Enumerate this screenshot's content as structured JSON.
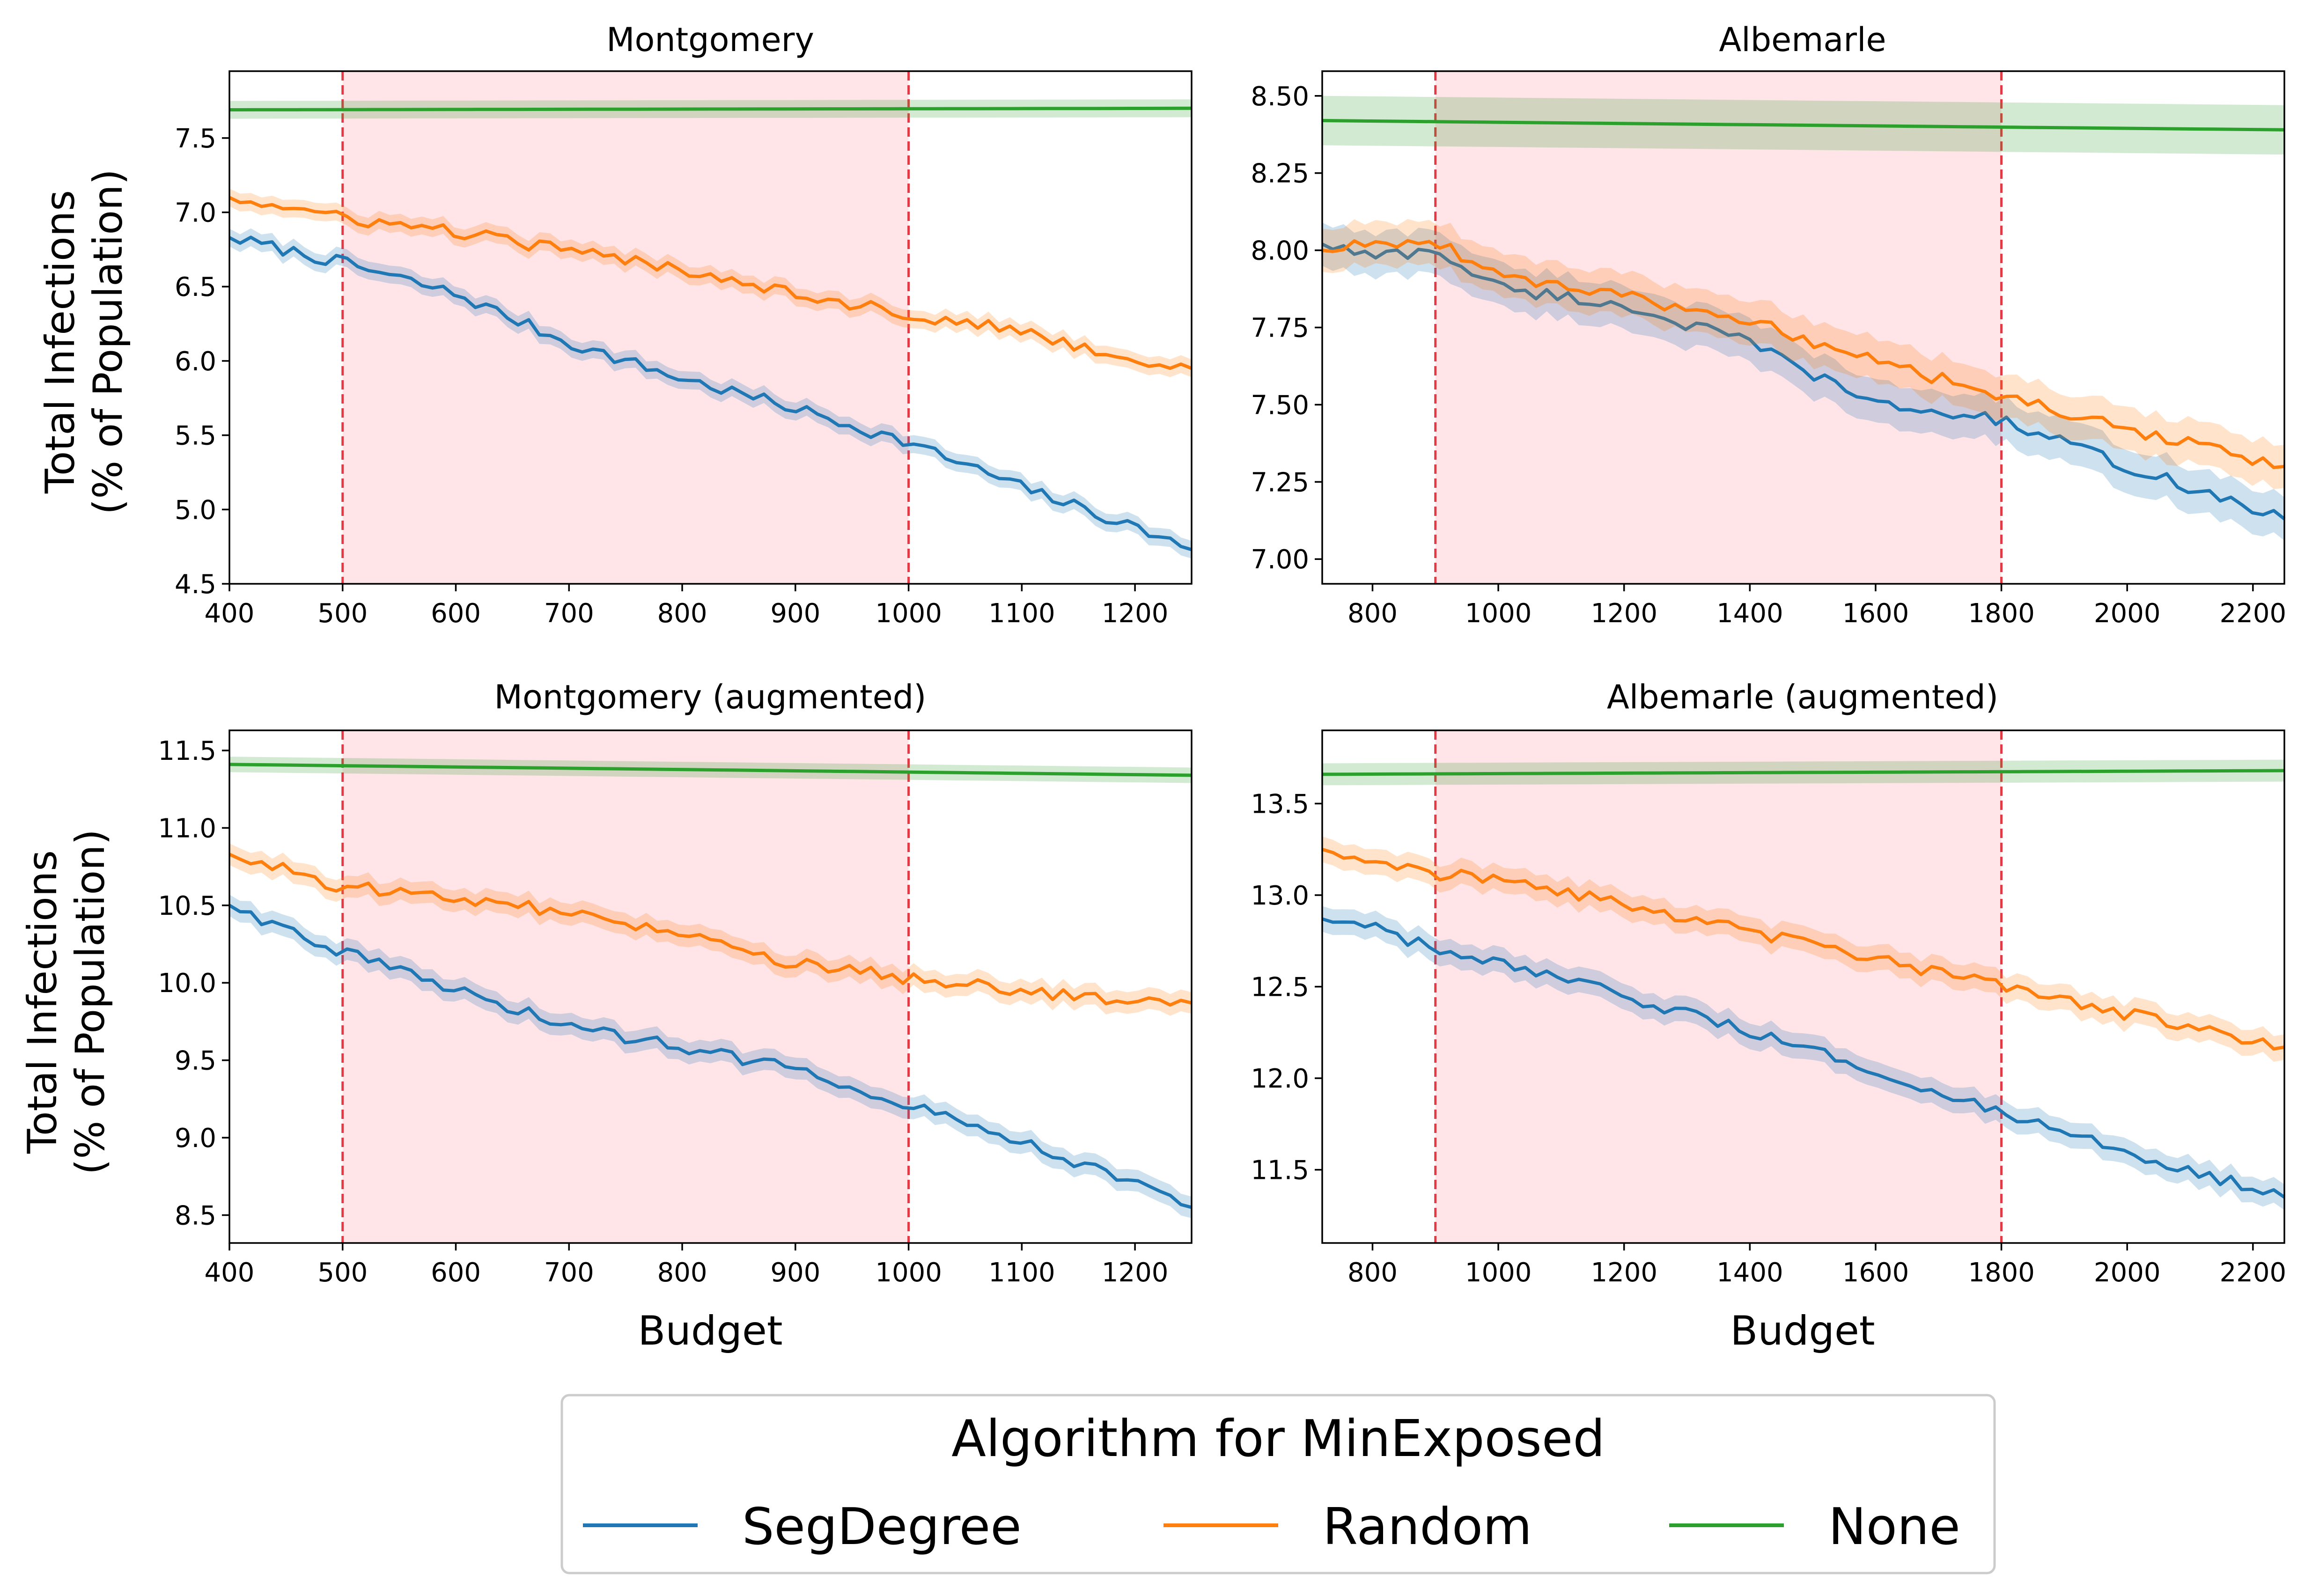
{
  "figure": {
    "shared_ylabel_line1": "Total Infections",
    "shared_ylabel_line2": "(% of Population)",
    "shared_xlabel": "Budget"
  },
  "legend": {
    "title": "Algorithm for MinExposed",
    "items": [
      {
        "label": "SegDegree",
        "color": "#1f77b4"
      },
      {
        "label": "Random",
        "color": "#ff7f0e"
      },
      {
        "label": "None",
        "color": "#2ca02c"
      }
    ]
  },
  "colors": {
    "SegDegree": "#1f77b4",
    "Random": "#ff7f0e",
    "None": "#2ca02c",
    "highlight_region": "#ffe5e8",
    "highlight_line": "#e23a44"
  },
  "chart_data": [
    {
      "type": "line",
      "title": "Montgomery",
      "xlim": [
        400,
        1250
      ],
      "ylim": [
        4.5,
        7.95
      ],
      "xticks": [
        400,
        500,
        600,
        700,
        800,
        900,
        1000,
        1100,
        1200
      ],
      "yticks": [
        4.5,
        5.0,
        5.5,
        6.0,
        6.5,
        7.0,
        7.5
      ],
      "highlight_range": [
        500,
        1000
      ],
      "series": [
        {
          "name": "SegDegree",
          "x": [
            400,
            500,
            600,
            700,
            800,
            900,
            1000,
            1100,
            1200,
            1250
          ],
          "y": [
            6.83,
            6.66,
            6.45,
            6.12,
            5.88,
            5.68,
            5.45,
            5.15,
            4.88,
            4.73
          ],
          "band": 0.06
        },
        {
          "name": "Random",
          "x": [
            400,
            500,
            600,
            700,
            800,
            900,
            1000,
            1100,
            1200,
            1250
          ],
          "y": [
            7.1,
            6.96,
            6.87,
            6.74,
            6.62,
            6.46,
            6.31,
            6.2,
            6.0,
            5.95
          ],
          "band": 0.06
        },
        {
          "name": "None",
          "x": [
            400,
            1250
          ],
          "y": [
            7.69,
            7.7
          ],
          "band": 0.06
        }
      ]
    },
    {
      "type": "line",
      "title": "Albemarle",
      "xlim": [
        720,
        2250
      ],
      "ylim": [
        6.92,
        8.58
      ],
      "xticks": [
        800,
        1000,
        1200,
        1400,
        1600,
        1800,
        2000,
        2200
      ],
      "yticks": [
        7.0,
        7.25,
        7.5,
        7.75,
        8.0,
        8.25,
        8.5
      ],
      "highlight_range": [
        900,
        1800
      ],
      "series": [
        {
          "name": "SegDegree",
          "x": [
            720,
            800,
            900,
            1000,
            1200,
            1400,
            1600,
            1800,
            2000,
            2250
          ],
          "y": [
            8.02,
            7.98,
            8.0,
            7.88,
            7.82,
            7.7,
            7.5,
            7.45,
            7.3,
            7.13
          ],
          "band": 0.07
        },
        {
          "name": "Random",
          "x": [
            720,
            800,
            900,
            1000,
            1200,
            1400,
            1600,
            1800,
            2000,
            2250
          ],
          "y": [
            8.0,
            8.02,
            8.03,
            7.92,
            7.85,
            7.77,
            7.64,
            7.53,
            7.42,
            7.3
          ],
          "band": 0.07
        },
        {
          "name": "None",
          "x": [
            720,
            2250
          ],
          "y": [
            8.42,
            8.39
          ],
          "band": 0.08
        }
      ]
    },
    {
      "type": "line",
      "title": "Montgomery (augmented)",
      "xlim": [
        400,
        1250
      ],
      "ylim": [
        8.32,
        11.63
      ],
      "xticks": [
        400,
        500,
        600,
        700,
        800,
        900,
        1000,
        1100,
        1200
      ],
      "yticks": [
        8.5,
        9.0,
        9.5,
        10.0,
        10.5,
        11.0,
        11.5
      ],
      "highlight_range": [
        500,
        1000
      ],
      "series": [
        {
          "name": "SegDegree",
          "x": [
            400,
            500,
            600,
            700,
            800,
            900,
            1000,
            1100,
            1200,
            1250
          ],
          "y": [
            10.5,
            10.2,
            9.95,
            9.72,
            9.58,
            9.45,
            9.22,
            8.98,
            8.7,
            8.55
          ],
          "band": 0.07
        },
        {
          "name": "Random",
          "x": [
            400,
            500,
            600,
            700,
            800,
            900,
            1000,
            1100,
            1200,
            1250
          ],
          "y": [
            10.83,
            10.62,
            10.55,
            10.45,
            10.3,
            10.12,
            10.03,
            9.95,
            9.88,
            9.87
          ],
          "band": 0.07
        },
        {
          "name": "None",
          "x": [
            400,
            1250
          ],
          "y": [
            11.41,
            11.34
          ],
          "band": 0.05
        }
      ]
    },
    {
      "type": "line",
      "title": "Albemarle (augmented)",
      "xlim": [
        720,
        2250
      ],
      "ylim": [
        11.1,
        13.9
      ],
      "xticks": [
        800,
        1000,
        1200,
        1400,
        1600,
        1800,
        2000,
        2200
      ],
      "yticks": [
        11.5,
        12.0,
        12.5,
        13.0,
        13.5
      ],
      "highlight_range": [
        900,
        1800
      ],
      "series": [
        {
          "name": "SegDegree",
          "x": [
            720,
            800,
            900,
            1000,
            1200,
            1400,
            1600,
            1800,
            2000,
            2250
          ],
          "y": [
            12.87,
            12.82,
            12.7,
            12.62,
            12.45,
            12.25,
            12.05,
            11.8,
            11.6,
            11.35
          ],
          "band": 0.07
        },
        {
          "name": "Random",
          "x": [
            720,
            800,
            900,
            1000,
            1200,
            1400,
            1600,
            1800,
            2000,
            2250
          ],
          "y": [
            13.25,
            13.2,
            13.12,
            13.08,
            12.95,
            12.8,
            12.65,
            12.5,
            12.35,
            12.17
          ],
          "band": 0.07
        },
        {
          "name": "None",
          "x": [
            720,
            2250
          ],
          "y": [
            13.66,
            13.68
          ],
          "band": 0.06
        }
      ]
    }
  ]
}
